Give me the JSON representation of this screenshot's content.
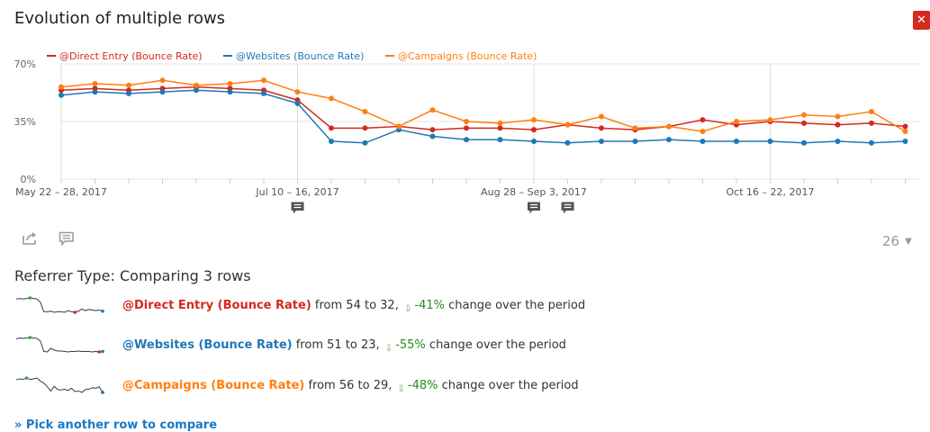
{
  "title": "Evolution of multiple rows",
  "close_label": "✕",
  "icons": {
    "close": "close-icon",
    "export": "export-icon",
    "annotation": "annotation-icon",
    "annotation_marker": "annotation-marker-icon"
  },
  "limit": {
    "value": "26",
    "arrow": "▼"
  },
  "comparison": {
    "heading": "Referrer Type: Comparing 3 rows",
    "rows": [
      {
        "label": "@Direct Entry (Bounce Rate)",
        "from_text": "from 54 to 32,",
        "change": "-41%",
        "suffix": "change over the period",
        "color": "#d4291f"
      },
      {
        "label": "@Websites (Bounce Rate)",
        "from_text": "from 51 to 23,",
        "change": "-55%",
        "suffix": "change over the period",
        "color": "#1f78b4"
      },
      {
        "label": "@Campaigns (Bounce Rate)",
        "from_text": "from 56 to 29,",
        "change": "-48%",
        "suffix": "change over the period",
        "color": "#ff7f0e"
      }
    ]
  },
  "pick_link": "» Pick another row to compare",
  "chart_data": {
    "type": "line",
    "x_tick_labels": [
      "May 22 – 28, 2017",
      "Jul 10 – 16, 2017",
      "Aug 28 – Sep 3, 2017",
      "Oct 16 – 22, 2017"
    ],
    "x_tick_indices": [
      0,
      7,
      14,
      21
    ],
    "num_points": 26,
    "ylim": [
      0,
      70
    ],
    "y_ticks": [
      0,
      35,
      70
    ],
    "y_tick_labels": [
      "0%",
      "35%",
      "70%"
    ],
    "grid": true,
    "legend_position": "top",
    "annotation_indices": [
      7,
      14,
      15
    ],
    "series": [
      {
        "name": "@Direct Entry (Bounce Rate)",
        "color": "#d4291f",
        "values": [
          54,
          55,
          54,
          55,
          56,
          55,
          54,
          48,
          31,
          31,
          32,
          30,
          31,
          31,
          30,
          33,
          31,
          30,
          32,
          36,
          33,
          35,
          34,
          33,
          34,
          32
        ]
      },
      {
        "name": "@Websites (Bounce Rate)",
        "color": "#1f78b4",
        "values": [
          51,
          53,
          52,
          53,
          54,
          53,
          52,
          46,
          23,
          22,
          30,
          26,
          24,
          24,
          23,
          22,
          23,
          23,
          24,
          23,
          23,
          23,
          22,
          23,
          22,
          23
        ]
      },
      {
        "name": "@Campaigns (Bounce Rate)",
        "color": "#ff7f0e",
        "values": [
          56,
          58,
          57,
          60,
          57,
          58,
          60,
          53,
          49,
          41,
          32,
          42,
          35,
          34,
          36,
          33,
          38,
          31,
          32,
          29,
          35,
          36,
          39,
          38,
          41,
          29
        ]
      }
    ],
    "sparklines": [
      [
        54,
        55,
        54,
        55,
        56,
        55,
        54,
        48,
        31,
        31,
        32,
        30,
        31,
        31,
        30,
        33,
        31,
        30,
        32,
        36,
        33,
        35,
        34,
        33,
        34,
        32
      ],
      [
        51,
        53,
        52,
        53,
        54,
        53,
        52,
        46,
        23,
        22,
        30,
        26,
        24,
        24,
        23,
        22,
        23,
        23,
        24,
        23,
        23,
        23,
        22,
        23,
        22,
        23
      ],
      [
        56,
        58,
        57,
        60,
        57,
        58,
        60,
        53,
        49,
        41,
        32,
        42,
        35,
        34,
        36,
        33,
        38,
        31,
        32,
        29,
        35,
        36,
        39,
        38,
        41,
        29
      ]
    ]
  }
}
